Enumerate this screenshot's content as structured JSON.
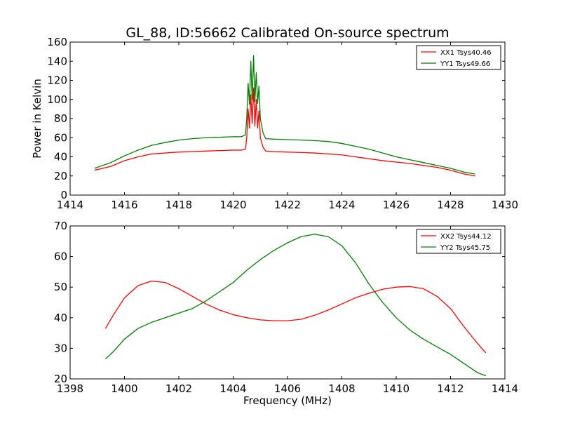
{
  "chart_data": [
    {
      "type": "line",
      "title": "GL_88, ID:56662 Calibrated On-source spectrum",
      "xlabel": "",
      "ylabel": "Power in Kelvin",
      "xlim": [
        1414,
        1430
      ],
      "ylim": [
        0,
        160
      ],
      "xticks": [
        "1414",
        "1416",
        "1418",
        "1420",
        "1422",
        "1424",
        "1426",
        "1428",
        "1430"
      ],
      "yticks": [
        "0",
        "20",
        "40",
        "60",
        "80",
        "100",
        "120",
        "140",
        "160"
      ],
      "legend_position": "top-right",
      "grid": false,
      "series": [
        {
          "name": "XX1 Tsys40.46",
          "color": "#ff0000",
          "x": [
            1414.9,
            1415.5,
            1416.0,
            1416.5,
            1417.0,
            1417.5,
            1418.0,
            1418.5,
            1419.0,
            1419.5,
            1420.0,
            1420.3,
            1420.45,
            1420.5,
            1420.55,
            1420.6,
            1420.65,
            1420.7,
            1420.75,
            1420.8,
            1420.85,
            1420.9,
            1420.95,
            1421.0,
            1421.1,
            1421.2,
            1421.5,
            1422.0,
            1422.5,
            1423.0,
            1423.5,
            1424.0,
            1424.5,
            1425.0,
            1425.5,
            1426.0,
            1426.5,
            1427.0,
            1427.5,
            1428.0,
            1428.5,
            1428.9
          ],
          "y": [
            26,
            30,
            36,
            40,
            43,
            44,
            45,
            45.5,
            46,
            46.5,
            47,
            47,
            48,
            60,
            90,
            70,
            105,
            75,
            112,
            72,
            100,
            70,
            88,
            60,
            50,
            46,
            45.5,
            45,
            44.5,
            44,
            43,
            42,
            40,
            38,
            36,
            34.5,
            33,
            31,
            29,
            26,
            22,
            20
          ]
        },
        {
          "name": "YY1 Tsys49.66",
          "color": "#008000",
          "x": [
            1414.9,
            1415.5,
            1416.0,
            1416.5,
            1417.0,
            1417.5,
            1418.0,
            1418.5,
            1419.0,
            1419.5,
            1420.0,
            1420.3,
            1420.45,
            1420.5,
            1420.55,
            1420.6,
            1420.65,
            1420.7,
            1420.75,
            1420.8,
            1420.85,
            1420.9,
            1420.95,
            1421.0,
            1421.1,
            1421.2,
            1421.5,
            1422.0,
            1422.5,
            1423.0,
            1423.5,
            1424.0,
            1424.5,
            1425.0,
            1425.5,
            1426.0,
            1426.5,
            1427.0,
            1427.5,
            1428.0,
            1428.5,
            1428.9
          ],
          "y": [
            28,
            34,
            41,
            47,
            52,
            55,
            57.5,
            59,
            60,
            60.5,
            61,
            61,
            63,
            80,
            117,
            95,
            140,
            100,
            146,
            98,
            128,
            96,
            114,
            80,
            65,
            59,
            58.5,
            58,
            57.5,
            57,
            56,
            54,
            51,
            48,
            44,
            40,
            37,
            34,
            31,
            28,
            24,
            22
          ]
        }
      ]
    },
    {
      "type": "line",
      "title": "",
      "xlabel": "Frequency (MHz)",
      "ylabel": "",
      "xlim": [
        1398,
        1414
      ],
      "ylim": [
        20,
        70
      ],
      "xticks": [
        "1398",
        "1400",
        "1402",
        "1404",
        "1406",
        "1408",
        "1410",
        "1412",
        "1414"
      ],
      "yticks": [
        "20",
        "30",
        "40",
        "50",
        "60",
        "70"
      ],
      "legend_position": "top-right",
      "grid": false,
      "series": [
        {
          "name": "XX2 Tsys44.12",
          "color": "#ff0000",
          "x": [
            1399.3,
            1399.6,
            1400.0,
            1400.5,
            1401.0,
            1401.5,
            1402.0,
            1402.5,
            1403.0,
            1403.5,
            1404.0,
            1404.5,
            1405.0,
            1405.5,
            1406.0,
            1406.5,
            1407.0,
            1407.5,
            1408.0,
            1408.5,
            1409.0,
            1409.5,
            1410.0,
            1410.5,
            1411.0,
            1411.5,
            1412.0,
            1412.5,
            1413.0,
            1413.3
          ],
          "y": [
            36.5,
            41,
            46.5,
            50.5,
            52,
            51.5,
            49.5,
            47,
            44.5,
            42.5,
            41,
            40,
            39.3,
            39,
            39,
            39.5,
            40.8,
            42.5,
            44.5,
            46.5,
            48,
            49.3,
            50,
            50.2,
            49.5,
            47,
            43,
            37,
            31.5,
            28.5
          ]
        },
        {
          "name": "YY2 Tsys45.75",
          "color": "#008000",
          "x": [
            1399.3,
            1399.6,
            1400.0,
            1400.5,
            1401.0,
            1401.5,
            1402.0,
            1402.5,
            1403.0,
            1403.5,
            1404.0,
            1404.5,
            1405.0,
            1405.5,
            1406.0,
            1406.5,
            1407.0,
            1407.5,
            1408.0,
            1408.5,
            1409.0,
            1409.5,
            1410.0,
            1410.5,
            1411.0,
            1411.5,
            1412.0,
            1412.5,
            1413.0,
            1413.3
          ],
          "y": [
            26.5,
            29,
            33,
            36.5,
            38.5,
            40,
            41.5,
            43,
            45.5,
            48.5,
            51.5,
            55.5,
            59,
            62,
            64.5,
            66.5,
            67.3,
            66.5,
            63.5,
            58,
            51,
            45,
            40,
            36,
            33,
            30.5,
            28,
            25,
            22,
            21
          ]
        }
      ]
    }
  ]
}
